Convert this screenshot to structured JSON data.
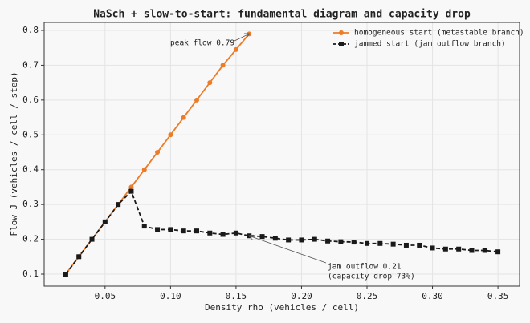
{
  "chart_data": {
    "type": "line",
    "title": "NaSch + slow-to-start: fundamental diagram and capacity drop",
    "x_label": "Density rho (vehicles / cell)",
    "y_label": "Flow J (vehicles / cell / step)",
    "xlim": [
      0.0035,
      0.3665
    ],
    "ylim": [
      0.0655,
      0.823
    ],
    "xticks": [
      0.05,
      {
        "value": 0.1,
        "label": "0.10"
      },
      0.15,
      {
        "value": 0.2,
        "label": "0.20"
      },
      0.25,
      {
        "value": 0.3,
        "label": "0.30"
      },
      0.35
    ],
    "yticks": [
      0.1,
      0.2,
      0.3,
      0.4,
      0.5,
      0.6,
      0.7,
      0.8
    ],
    "grid": true,
    "legend": "upper right",
    "series": [
      {
        "name": "homogeneous start (metastable branch)",
        "color": "#ee7b26",
        "marker": "circle",
        "dashed": false,
        "x": [
          0.02,
          0.03,
          0.04,
          0.05,
          0.06,
          0.07,
          0.08,
          0.09,
          0.1,
          0.11,
          0.12,
          0.13,
          0.14,
          0.15,
          0.16
        ],
        "values": [
          0.1,
          0.15,
          0.2,
          0.25,
          0.3,
          0.35,
          0.4,
          0.45,
          0.5,
          0.55,
          0.6,
          0.65,
          0.7,
          0.745,
          0.79
        ]
      },
      {
        "name": "jammed start (jam outflow branch)",
        "color": "#1a1a1a",
        "marker": "square",
        "dashed": true,
        "x": [
          0.02,
          0.03,
          0.04,
          0.05,
          0.06,
          0.07,
          0.08,
          0.09,
          0.1,
          0.11,
          0.12,
          0.13,
          0.14,
          0.15,
          0.16,
          0.17,
          0.18,
          0.19,
          0.2,
          0.21,
          0.22,
          0.23,
          0.24,
          0.25,
          0.26,
          0.27,
          0.28,
          0.29,
          0.3,
          0.31,
          0.32,
          0.33,
          0.34,
          0.35
        ],
        "values": [
          0.1,
          0.15,
          0.2,
          0.25,
          0.3,
          0.338,
          0.238,
          0.228,
          0.228,
          0.224,
          0.224,
          0.218,
          0.214,
          0.218,
          0.21,
          0.208,
          0.203,
          0.198,
          0.198,
          0.2,
          0.195,
          0.193,
          0.192,
          0.188,
          0.188,
          0.186,
          0.183,
          0.183,
          0.175,
          0.172,
          0.172,
          0.168,
          0.168,
          0.164
        ]
      }
    ],
    "annotations": [
      {
        "text": [
          "peak flow 0.79"
        ],
        "x": 0.16,
        "y": 0.79
      },
      {
        "text": [
          "jam outflow 0.21",
          "(capacity drop 73%)"
        ],
        "x": 0.16,
        "y": 0.21
      }
    ]
  }
}
